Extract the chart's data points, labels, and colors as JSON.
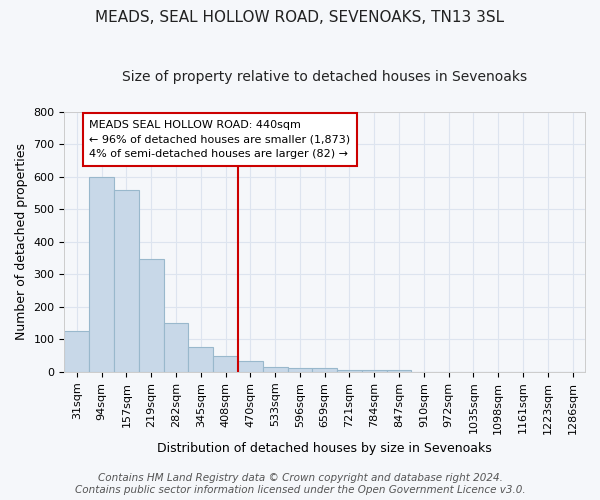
{
  "title1": "MEADS, SEAL HOLLOW ROAD, SEVENOAKS, TN13 3SL",
  "title2": "Size of property relative to detached houses in Sevenoaks",
  "xlabel": "Distribution of detached houses by size in Sevenoaks",
  "ylabel": "Number of detached properties",
  "categories": [
    "31sqm",
    "94sqm",
    "157sqm",
    "219sqm",
    "282sqm",
    "345sqm",
    "408sqm",
    "470sqm",
    "533sqm",
    "596sqm",
    "659sqm",
    "721sqm",
    "784sqm",
    "847sqm",
    "910sqm",
    "972sqm",
    "1035sqm",
    "1098sqm",
    "1161sqm",
    "1223sqm",
    "1286sqm"
  ],
  "values": [
    125,
    600,
    560,
    348,
    150,
    77,
    50,
    33,
    15,
    13,
    13,
    7,
    7,
    7,
    0,
    0,
    0,
    0,
    0,
    0,
    0
  ],
  "bar_color": "#c8d8e8",
  "bar_edge_color": "#99b8cc",
  "vline_color": "#cc0000",
  "vline_x": 7.0,
  "annotation_text": "MEADS SEAL HOLLOW ROAD: 440sqm\n← 96% of detached houses are smaller (1,873)\n4% of semi-detached houses are larger (82) →",
  "annotation_box_color": "#ffffff",
  "annotation_box_edge": "#cc0000",
  "ylim": [
    0,
    800
  ],
  "yticks": [
    0,
    100,
    200,
    300,
    400,
    500,
    600,
    700,
    800
  ],
  "footer": "Contains HM Land Registry data © Crown copyright and database right 2024.\nContains public sector information licensed under the Open Government Licence v3.0.",
  "background_color": "#f5f7fa",
  "plot_bg_color": "#f5f7fa",
  "grid_color": "#dde4ef",
  "title1_fontsize": 11,
  "title2_fontsize": 10,
  "tick_fontsize": 8,
  "label_fontsize": 9,
  "footer_fontsize": 7.5
}
